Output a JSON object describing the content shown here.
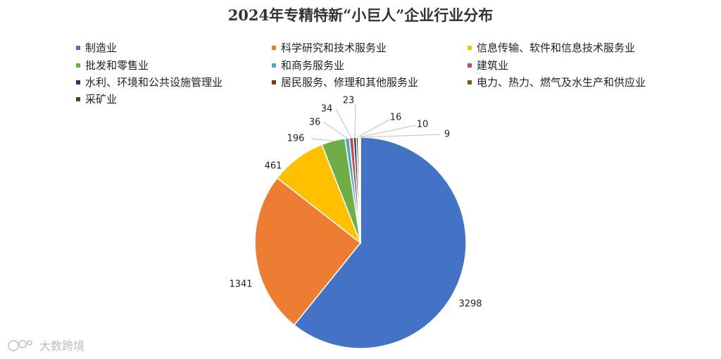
{
  "chart_data": {
    "type": "pie",
    "title": "2024年专精特新“小巨人”企业行业分布",
    "legend_position": "top",
    "categories": [
      "制造业",
      "科学研究和技术服务业",
      "信息传输、软件和信息技术服务业",
      "批发和零售业",
      "和商务服务业",
      "建筑业",
      "水利、环境和公共设施管理业",
      "居民服务、修理和其他服务业",
      "电力、热力、燃气及水生产和供应业",
      "采矿业"
    ],
    "values": [
      3298,
      1341,
      461,
      196,
      36,
      34,
      23,
      16,
      10,
      9
    ],
    "colors": [
      "#4472C4",
      "#ED7D31",
      "#FFC000",
      "#70AD47",
      "#4BACC6",
      "#C0504D",
      "#1F3864",
      "#843C0C",
      "#7F6000",
      "#375623"
    ]
  },
  "watermark": {
    "text": "大数跨境"
  }
}
